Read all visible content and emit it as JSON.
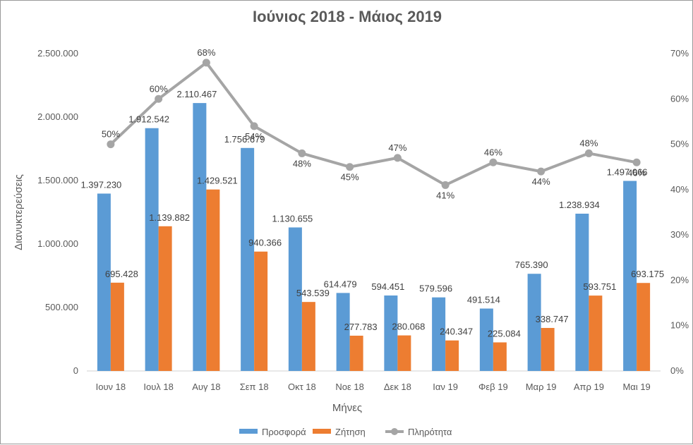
{
  "chart_data": {
    "type": "bar",
    "title": "Ιούνιος 2018 - Μάιος 2019",
    "xlabel": "Μήνες",
    "ylabel": "Διανυκτερεύσεις",
    "ylim": [
      0,
      2500000
    ],
    "y2lim": [
      0,
      70
    ],
    "yticks": [
      "0",
      "500.000",
      "1.000.000",
      "1.500.000",
      "2.000.000",
      "2.500.000"
    ],
    "y2ticks": [
      "0%",
      "10%",
      "20%",
      "30%",
      "40%",
      "50%",
      "60%",
      "70%"
    ],
    "grid": false,
    "legend_position": "bottom",
    "categories": [
      "Ιουν 18",
      "Ιουλ 18",
      "Αυγ 18",
      "Σεπ 18",
      "Οκτ 18",
      "Νοε 18",
      "Δεκ 18",
      "Ιαν 19",
      "Φεβ 19",
      "Μαρ 19",
      "Απρ 19",
      "Μαι 19"
    ],
    "series": [
      {
        "name": "Προσφορά",
        "type": "bar",
        "axis": "left",
        "color": "#5b9bd5",
        "values": [
          1397230,
          1912542,
          2110467,
          1756679,
          1130655,
          614479,
          594451,
          579596,
          491514,
          765390,
          1238934,
          1497066
        ],
        "labels": [
          "1.397.230",
          "1.912.542",
          "2.110.467",
          "1.756.679",
          "1.130.655",
          "614.479",
          "594.451",
          "579.596",
          "491.514",
          "765.390",
          "1.238.934",
          "1.497.066"
        ]
      },
      {
        "name": "Ζήτηση",
        "type": "bar",
        "axis": "left",
        "color": "#ed7d31",
        "values": [
          695428,
          1139882,
          1429521,
          940366,
          543539,
          277783,
          280068,
          240347,
          225084,
          338747,
          593751,
          693175
        ],
        "labels": [
          "695.428",
          "1.139.882",
          "1.429.521",
          "940.366",
          "543.539",
          "277.783",
          "280.068",
          "240.347",
          "225.084",
          "338.747",
          "593.751",
          "693.175"
        ]
      },
      {
        "name": "Πληρότητα",
        "type": "line",
        "axis": "right",
        "color": "#a5a5a5",
        "values": [
          50,
          60,
          68,
          54,
          48,
          45,
          47,
          41,
          46,
          44,
          48,
          46
        ],
        "labels": [
          "50%",
          "60%",
          "68%",
          "54%",
          "48%",
          "45%",
          "47%",
          "41%",
          "46%",
          "44%",
          "48%",
          "46%"
        ]
      }
    ]
  }
}
